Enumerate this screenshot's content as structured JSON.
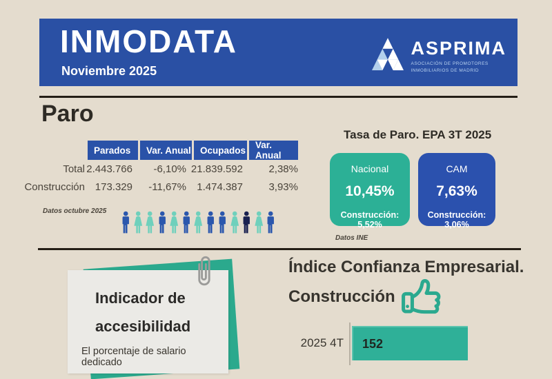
{
  "header": {
    "title": "INMODATA",
    "subtitle": "Noviembre 2025",
    "logo": {
      "name": "ASPRIMA",
      "tagline1": "ASOCIACIÓN DE PROMOTORES",
      "tagline2": "INMOBILIARIOS DE MADRID"
    }
  },
  "paro": {
    "title": "Paro",
    "table": {
      "columns": [
        "Parados",
        "Var. Anual",
        "Ocupados",
        "Var. Anual"
      ],
      "rows": [
        {
          "label": "Total",
          "values": [
            "2.443.766",
            "-6,10%",
            "21.839.592",
            "2,38%"
          ]
        },
        {
          "label": "Construcción",
          "values": [
            "173.329",
            "-11,67%",
            "1.474.387",
            "3,93%"
          ]
        }
      ]
    },
    "note": "Datos octubre 2025",
    "people": [
      "man-blue",
      "woman-teal",
      "woman-teal",
      "man-blue",
      "woman-teal",
      "man-blue",
      "woman-teal",
      "man-blue",
      "man-blue",
      "woman-teal",
      "man-navy",
      "woman-teal",
      "man-blue"
    ],
    "people_colors": {
      "blue": "#2b57ad",
      "teal": "#6fd0bc",
      "navy": "#1a2150"
    }
  },
  "tasa_paro": {
    "title": "Tasa de Paro. EPA 3T 2025",
    "cards": [
      {
        "label": "Nacional",
        "value": "10,45%",
        "sub": "Construcción: 5,52%",
        "color": "#2cb096"
      },
      {
        "label": "CAM",
        "value": "7,63%",
        "sub": "Construcción: 3,06%",
        "color": "#2b51ae"
      }
    ],
    "note": "Datos INE"
  },
  "accesibilidad": {
    "title_line1": "Indicador de",
    "title_line2": "accesibilidad",
    "body": "El porcentaje de salario dedicado"
  },
  "confianza": {
    "title_line1": "Índice Confianza Empresarial.",
    "title_line2": "Construcción",
    "bar": {
      "label": "2025 4T",
      "value": "152"
    }
  },
  "colors": {
    "background": "#e4dcce",
    "banner_blue": "#2a50a4",
    "table_header_blue": "#2a52a8",
    "teal": "#2cb096",
    "cam_blue": "#2b51ae",
    "rule_dark": "#241e16"
  },
  "chart_data": {
    "type": "bar",
    "title": "Índice Confianza Empresarial. Construcción",
    "categories": [
      "2025 4T"
    ],
    "values": [
      152
    ],
    "orientation": "horizontal",
    "bar_color": "#2fb098"
  }
}
